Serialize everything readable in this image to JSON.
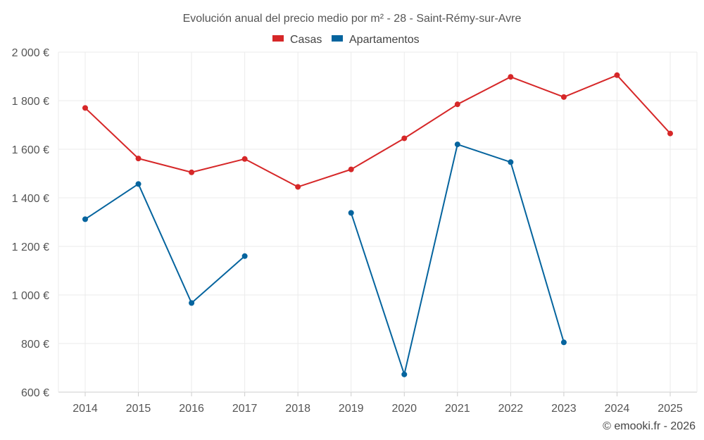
{
  "chart_data": {
    "type": "line",
    "title": "Evolución anual del precio medio por m² - 28 - Saint-Rémy-sur-Avre",
    "categories": [
      "2014",
      "2015",
      "2016",
      "2017",
      "2018",
      "2019",
      "2020",
      "2021",
      "2022",
      "2023",
      "2024",
      "2025"
    ],
    "ylim": [
      600,
      2000
    ],
    "yticks": [
      600,
      800,
      1000,
      1200,
      1400,
      1600,
      1800,
      2000
    ],
    "ytick_labels": [
      "600 €",
      "800 €",
      "1 000 €",
      "1 200 €",
      "1 400 €",
      "1 600 €",
      "1 800 €",
      "2 000 €"
    ],
    "grid": true,
    "legend_position": "top-center",
    "series": [
      {
        "name": "Casas",
        "color": "#d62728",
        "values": [
          1770,
          1562,
          1505,
          1560,
          1445,
          1517,
          1645,
          1785,
          1898,
          1815,
          1905,
          1665
        ]
      },
      {
        "name": "Apartamentos",
        "color": "#05649e",
        "values": [
          1312,
          1457,
          967,
          1160,
          null,
          1338,
          673,
          1620,
          1547,
          805,
          null,
          null
        ]
      }
    ]
  },
  "credit": "© emooki.fr - 2026"
}
